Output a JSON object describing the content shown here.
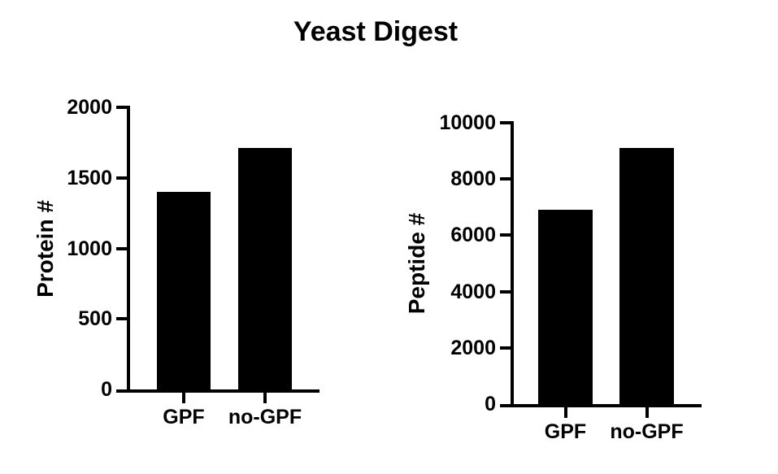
{
  "figure_title": "Yeast Digest",
  "colors": {
    "background": "#ffffff",
    "bar": "#000000",
    "axis": "#000000",
    "text": "#000000"
  },
  "chart_data": [
    {
      "type": "bar",
      "panel": "left",
      "title": "Yeast Digest",
      "xlabel": "",
      "ylabel": "Protein #",
      "categories": [
        "GPF",
        "no-GPF"
      ],
      "values": [
        1400,
        1710
      ],
      "ylim": [
        0,
        2000
      ],
      "yticks": [
        0,
        500,
        1000,
        1500,
        2000
      ],
      "bar_color": "#000000",
      "grid": false,
      "legend": false
    },
    {
      "type": "bar",
      "panel": "right",
      "title": "Yeast Digest",
      "xlabel": "",
      "ylabel": "Peptide #",
      "categories": [
        "GPF",
        "no-GPF"
      ],
      "values": [
        6900,
        9100
      ],
      "ylim": [
        0,
        10000
      ],
      "yticks": [
        0,
        2000,
        4000,
        6000,
        8000,
        10000
      ],
      "bar_color": "#000000",
      "grid": false,
      "legend": false
    }
  ]
}
